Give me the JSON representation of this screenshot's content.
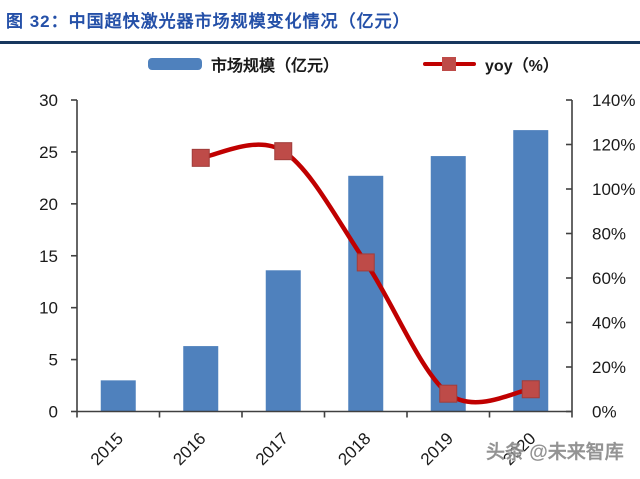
{
  "title": {
    "text": "图 32：中国超快激光器市场规模变化情况（亿元）"
  },
  "legend": {
    "bar_label": "市场规模（亿元）",
    "line_label": "yoy（%）"
  },
  "watermark": "头条 @未来智库",
  "colors": {
    "title_blue": "#2450A8",
    "divider_navy": "#17375E",
    "bar_blue": "#4F81BD",
    "line_red": "#C00000",
    "marker_red": "#BE4B48",
    "marker_edge": "#A03D3A",
    "axis_gray": "#404040",
    "label_black": "#1A1A1A",
    "watermark_gray": "#8A8A8A"
  },
  "chart_data": {
    "type": "bar+line combo",
    "title": "图 32：中国超快激光器市场规模变化情况（亿元）",
    "categories": [
      "2015",
      "2016",
      "2017",
      "2018",
      "2019",
      "2020"
    ],
    "series": [
      {
        "name": "市场规模（亿元）",
        "type": "bar",
        "axis": "left",
        "values": [
          3.0,
          6.3,
          13.6,
          22.7,
          24.6,
          27.1
        ]
      },
      {
        "name": "yoy（%）",
        "type": "line",
        "axis": "right",
        "unit": "%",
        "values": [
          null,
          114,
          117,
          67,
          8,
          10
        ]
      }
    ],
    "left_axis": {
      "min": 0,
      "max": 30,
      "tick_step": 5,
      "tick_labels": [
        "0",
        "5",
        "10",
        "15",
        "20",
        "25",
        "30"
      ]
    },
    "right_axis": {
      "min": 0,
      "max": 140,
      "tick_step": 20,
      "tick_labels": [
        "0%",
        "20%",
        "40%",
        "60%",
        "80%",
        "100%",
        "120%",
        "140%"
      ]
    },
    "grid": false,
    "legend_position": "top",
    "x_label_rotation_deg": -45,
    "line_smooth": true
  }
}
